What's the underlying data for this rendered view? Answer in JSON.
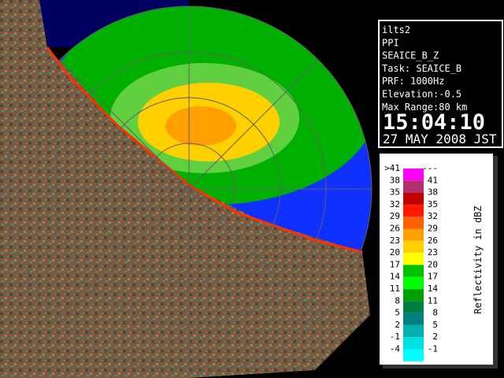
{
  "panel": {
    "lines": [
      "ilts2",
      "PPI",
      "SEAICE_B_Z",
      "Task: SEAICE_B",
      "PRF: 1000Hz",
      "Elevation:-0.5",
      "Max Range:80 km"
    ],
    "time": "15:04:10",
    "date": "27 MAY 2008 JST"
  },
  "legend": {
    "title": "Reflectivity in dBZ",
    "rows": [
      {
        "low": ">41",
        "high": "---",
        "color": "#ff00ff"
      },
      {
        "low": "38",
        "high": "41",
        "color": "#b03070"
      },
      {
        "low": "35",
        "high": "38",
        "color": "#c00000"
      },
      {
        "low": "32",
        "high": "35",
        "color": "#ff1a00"
      },
      {
        "low": "29",
        "high": "32",
        "color": "#ff6000"
      },
      {
        "low": "26",
        "high": "29",
        "color": "#ffa000"
      },
      {
        "low": "23",
        "high": "26",
        "color": "#ffd000"
      },
      {
        "low": "20",
        "high": "23",
        "color": "#ffff00"
      },
      {
        "low": "17",
        "high": "20",
        "color": "#00c000"
      },
      {
        "low": "14",
        "high": "17",
        "color": "#00ff00"
      },
      {
        "low": "11",
        "high": "14",
        "color": "#00a000"
      },
      {
        "low": "8",
        "high": "11",
        "color": "#008040"
      },
      {
        "low": "5",
        "high": "8",
        "color": "#008080"
      },
      {
        "low": "2",
        "high": "5",
        "color": "#00b0b0"
      },
      {
        "low": "-1",
        "high": "2",
        "color": "#00e0e0"
      },
      {
        "low": "-4",
        "high": "-1",
        "color": "#00ffff"
      }
    ]
  }
}
